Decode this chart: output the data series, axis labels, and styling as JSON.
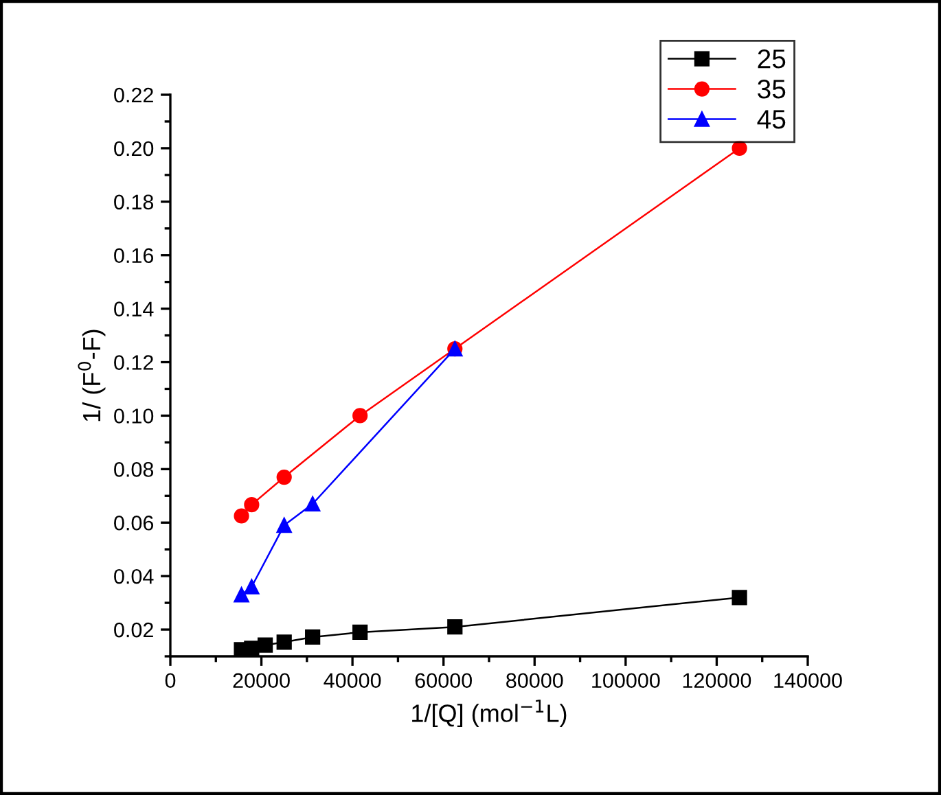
{
  "chart_data": {
    "type": "line",
    "xlabel": "1/[Q] (mol$^{−1}$L)",
    "ylabel": "1/ (F$^{0}$-F)",
    "xlim": [
      0,
      140000
    ],
    "xticks": [
      0,
      20000,
      40000,
      60000,
      80000,
      100000,
      120000,
      140000
    ],
    "ylim": [
      0.01,
      0.22
    ],
    "yticks": [
      0.02,
      0.04,
      0.06,
      0.08,
      {
        "value": 0.1,
        "label": "0.10"
      },
      0.12,
      0.14,
      0.16,
      0.18,
      {
        "value": 0.2,
        "label": "0.20"
      },
      0.22
    ],
    "grid": false,
    "legend": "top right",
    "series": [
      {
        "name": "25",
        "color": "#000000",
        "marker": "square",
        "x": [
          15625,
          17857,
          20833,
          25000,
          31250,
          41667,
          62500,
          125000
        ],
        "values": [
          0.0125,
          0.013,
          0.0142,
          0.0153,
          0.0172,
          0.019,
          0.021,
          0.032
        ]
      },
      {
        "name": "35",
        "color": "#ff0000",
        "marker": "circle",
        "x": [
          15625,
          17857,
          25000,
          41667,
          62500,
          125000
        ],
        "values": [
          0.0625,
          0.0667,
          0.077,
          0.1,
          0.125,
          0.2
        ]
      },
      {
        "name": "45",
        "color": "#0000ff",
        "marker": "triangle",
        "x": [
          15625,
          17857,
          25000,
          31250,
          62500
        ],
        "values": [
          0.033,
          0.036,
          0.059,
          0.067,
          0.125
        ]
      }
    ]
  }
}
